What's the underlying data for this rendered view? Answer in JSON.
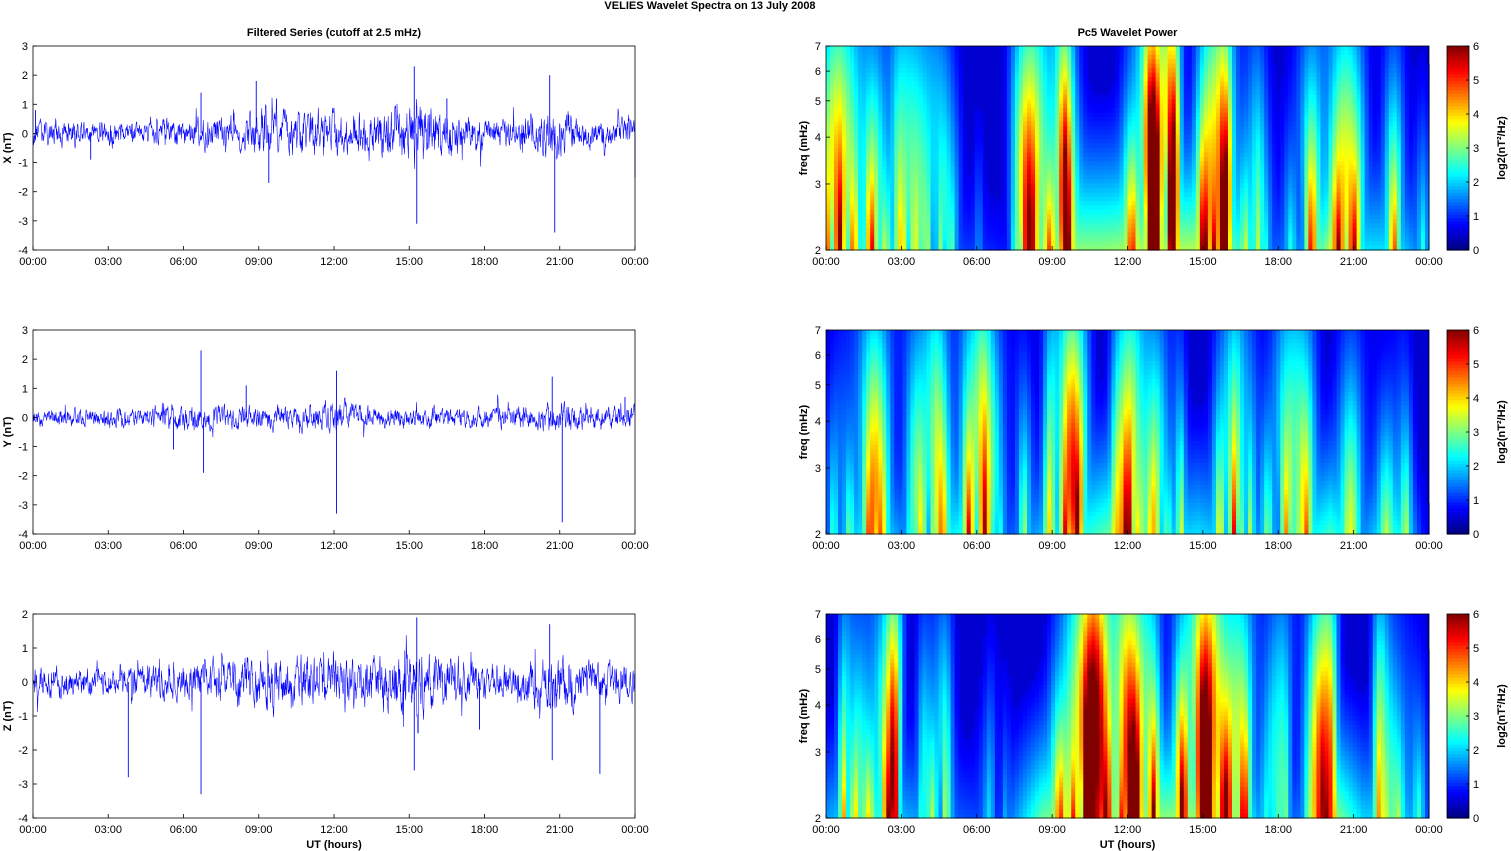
{
  "figure": {
    "suptitle": "VELIES Wavelet Spectra on 13 July      2008",
    "left_title": "Filtered Series (cutoff at 2.5 mHz)",
    "right_title": "Pc5 Wavelet Power",
    "xlabel": "UT (hours)",
    "xticks": [
      "00:00",
      "03:00",
      "06:00",
      "09:00",
      "12:00",
      "15:00",
      "18:00",
      "21:00",
      "00:00"
    ]
  },
  "colors": {
    "series": "#0000ff",
    "axis": "#000000",
    "background": "#ffffff"
  },
  "chart_data": [
    {
      "type": "line",
      "name": "X",
      "title": "Filtered Series (cutoff at 2.5 mHz)",
      "ylabel": "X (nT)",
      "xlabel": "",
      "xlim": [
        0,
        24
      ],
      "ylim": [
        -4,
        3
      ],
      "yticks": [
        "3",
        "2",
        "1",
        "0",
        "-1",
        "-2",
        "-3",
        "-4"
      ],
      "yvals": [
        3,
        2,
        1,
        0,
        -1,
        -2,
        -3,
        -4
      ],
      "base_amp": 0.25,
      "activity": [
        [
          0,
          0.9
        ],
        [
          1,
          1.1
        ],
        [
          2,
          0.9
        ],
        [
          3,
          1.0
        ],
        [
          4,
          0.8
        ],
        [
          5,
          1.0
        ],
        [
          6,
          1.1
        ],
        [
          7,
          1.3
        ],
        [
          8,
          1.5
        ],
        [
          9,
          1.8
        ],
        [
          10,
          1.6
        ],
        [
          11,
          1.9
        ],
        [
          12,
          1.6
        ],
        [
          13,
          1.7
        ],
        [
          14,
          1.8
        ],
        [
          15,
          2.4
        ],
        [
          16,
          2.0
        ],
        [
          17,
          1.6
        ],
        [
          18,
          1.2
        ],
        [
          19,
          1.0
        ],
        [
          20,
          1.6
        ],
        [
          21,
          1.8
        ],
        [
          22,
          1.3
        ],
        [
          23,
          1.1
        ],
        [
          24,
          1.0
        ]
      ],
      "spikes": [
        [
          0.1,
          0.8
        ],
        [
          2.3,
          -0.9
        ],
        [
          6.7,
          1.4
        ],
        [
          8.9,
          1.8
        ],
        [
          9.4,
          -1.7
        ],
        [
          15.2,
          2.3
        ],
        [
          15.3,
          -3.1
        ],
        [
          16.5,
          1.2
        ],
        [
          20.6,
          2.0
        ],
        [
          20.8,
          -3.4
        ],
        [
          24.0,
          -1.5
        ]
      ]
    },
    {
      "type": "line",
      "name": "Y",
      "title": "",
      "ylabel": "Y (nT)",
      "xlabel": "",
      "xlim": [
        0,
        24
      ],
      "ylim": [
        -4,
        3
      ],
      "yticks": [
        "3",
        "2",
        "1",
        "0",
        "-1",
        "-2",
        "-3",
        "-4"
      ],
      "yvals": [
        3,
        2,
        1,
        0,
        -1,
        -2,
        -3,
        -4
      ],
      "base_amp": 0.2,
      "activity": [
        [
          0,
          0.8
        ],
        [
          2,
          0.9
        ],
        [
          4,
          1.0
        ],
        [
          6,
          1.3
        ],
        [
          7,
          1.2
        ],
        [
          9,
          1.1
        ],
        [
          11,
          1.3
        ],
        [
          12,
          1.6
        ],
        [
          14,
          1.0
        ],
        [
          16,
          1.1
        ],
        [
          18,
          1.0
        ],
        [
          20,
          1.2
        ],
        [
          21,
          1.4
        ],
        [
          23,
          1.2
        ],
        [
          24,
          1.3
        ]
      ],
      "spikes": [
        [
          5.6,
          -1.1
        ],
        [
          6.7,
          2.3
        ],
        [
          6.8,
          -1.9
        ],
        [
          8.5,
          1.1
        ],
        [
          12.1,
          1.6
        ],
        [
          12.1,
          -3.3
        ],
        [
          20.7,
          1.4
        ],
        [
          21.1,
          -3.6
        ],
        [
          23.6,
          0.7
        ]
      ]
    },
    {
      "type": "line",
      "name": "Z",
      "title": "",
      "ylabel": "Z (nT)",
      "xlabel": "UT (hours)",
      "xlim": [
        0,
        24
      ],
      "ylim": [
        -4,
        2
      ],
      "yticks": [
        "2",
        "1",
        "0",
        "-1",
        "-2",
        "-3",
        "-4"
      ],
      "yvals": [
        2,
        1,
        0,
        -1,
        -2,
        -3,
        -4
      ],
      "base_amp": 0.28,
      "activity": [
        [
          0,
          1.0
        ],
        [
          2,
          0.9
        ],
        [
          3,
          0.9
        ],
        [
          5,
          1.0
        ],
        [
          7,
          1.2
        ],
        [
          8,
          1.4
        ],
        [
          9,
          1.6
        ],
        [
          10,
          1.5
        ],
        [
          11,
          1.6
        ],
        [
          12,
          1.5
        ],
        [
          13,
          1.4
        ],
        [
          14,
          1.6
        ],
        [
          15,
          2.1
        ],
        [
          16,
          1.7
        ],
        [
          17,
          1.3
        ],
        [
          19,
          1.1
        ],
        [
          20,
          1.5
        ],
        [
          21,
          1.7
        ],
        [
          22,
          1.2
        ],
        [
          24,
          1.1
        ]
      ],
      "spikes": [
        [
          3.8,
          -2.8
        ],
        [
          6.7,
          -3.3
        ],
        [
          15.2,
          -2.6
        ],
        [
          15.3,
          1.9
        ],
        [
          17.8,
          -1.4
        ],
        [
          20.6,
          1.7
        ],
        [
          20.7,
          -2.3
        ],
        [
          22.6,
          -2.7
        ]
      ]
    },
    {
      "type": "heatmap",
      "name": "X",
      "title": "Pc5 Wavelet Power",
      "ylabel": "freq (mHz)",
      "xlabel": "",
      "colorbar_label": "log2(nT²/Hz)",
      "clim": [
        0,
        6
      ],
      "xlim": [
        0,
        24
      ],
      "ylim": [
        2,
        7
      ],
      "yscale": "log",
      "yticks": [
        "7",
        "6",
        "5",
        "4",
        "3",
        "2"
      ],
      "yvals": [
        7,
        6,
        5,
        4,
        3,
        2
      ],
      "cticks": [
        "6",
        "5",
        "4",
        "3",
        "2",
        "1",
        "0"
      ],
      "activity": [
        [
          0,
          3.2
        ],
        [
          1.7,
          4.6
        ],
        [
          3.2,
          3.0
        ],
        [
          5.5,
          2.0
        ],
        [
          7.2,
          1.5
        ],
        [
          8.3,
          4.8
        ],
        [
          9.0,
          5.6
        ],
        [
          11.0,
          5.6
        ],
        [
          12.5,
          5.9
        ],
        [
          14.8,
          6.0
        ],
        [
          15.5,
          6.2
        ],
        [
          16.5,
          4.6
        ],
        [
          17.6,
          2.2
        ],
        [
          19.0,
          2.8
        ],
        [
          20.1,
          6.2
        ],
        [
          21.4,
          3.8
        ],
        [
          22.8,
          3.8
        ],
        [
          24.0,
          2.0
        ]
      ]
    },
    {
      "type": "heatmap",
      "name": "Y",
      "title": "",
      "ylabel": "freq (mHz)",
      "xlabel": "",
      "colorbar_label": "log2(nT²/Hz)",
      "clim": [
        0,
        6
      ],
      "xlim": [
        0,
        24
      ],
      "ylim": [
        2,
        7
      ],
      "yscale": "log",
      "yticks": [
        "7",
        "6",
        "5",
        "4",
        "3",
        "2"
      ],
      "yvals": [
        7,
        6,
        5,
        4,
        3,
        2
      ],
      "cticks": [
        "6",
        "5",
        "4",
        "3",
        "2",
        "1",
        "0"
      ],
      "activity": [
        [
          0,
          1.8
        ],
        [
          1.8,
          4.4
        ],
        [
          3.5,
          2.2
        ],
        [
          5.6,
          4.6
        ],
        [
          7.0,
          2.0
        ],
        [
          8.5,
          3.2
        ],
        [
          10.6,
          4.6
        ],
        [
          11.8,
          5.6
        ],
        [
          13.2,
          3.2
        ],
        [
          14.8,
          3.8
        ],
        [
          16.3,
          3.0
        ],
        [
          18.3,
          2.8
        ],
        [
          20.1,
          4.8
        ],
        [
          21.3,
          2.6
        ],
        [
          22.5,
          4.5
        ],
        [
          23.2,
          3.6
        ],
        [
          24.0,
          0.5
        ]
      ]
    },
    {
      "type": "heatmap",
      "name": "Z",
      "title": "",
      "ylabel": "freq (mHz)",
      "xlabel": "UT (hours)",
      "colorbar_label": "log2(nT²/Hz)",
      "clim": [
        0,
        6
      ],
      "xlim": [
        0,
        24
      ],
      "ylim": [
        2,
        7
      ],
      "yscale": "log",
      "yticks": [
        "7",
        "6",
        "5",
        "4",
        "3",
        "2"
      ],
      "yvals": [
        7,
        6,
        5,
        4,
        3,
        2
      ],
      "cticks": [
        "6",
        "5",
        "4",
        "3",
        "2",
        "1",
        "0"
      ],
      "activity": [
        [
          0,
          3.0
        ],
        [
          1.8,
          4.6
        ],
        [
          3.2,
          3.2
        ],
        [
          5.5,
          2.2
        ],
        [
          7.0,
          1.8
        ],
        [
          8.6,
          5.2
        ],
        [
          9.5,
          5.8
        ],
        [
          11.0,
          5.0
        ],
        [
          12.4,
          5.6
        ],
        [
          14.6,
          5.6
        ],
        [
          15.3,
          6.2
        ],
        [
          16.5,
          5.2
        ],
        [
          17.6,
          2.0
        ],
        [
          19.0,
          2.6
        ],
        [
          20.1,
          6.0
        ],
        [
          21.4,
          3.6
        ],
        [
          22.8,
          3.8
        ],
        [
          24.0,
          2.0
        ]
      ]
    }
  ]
}
